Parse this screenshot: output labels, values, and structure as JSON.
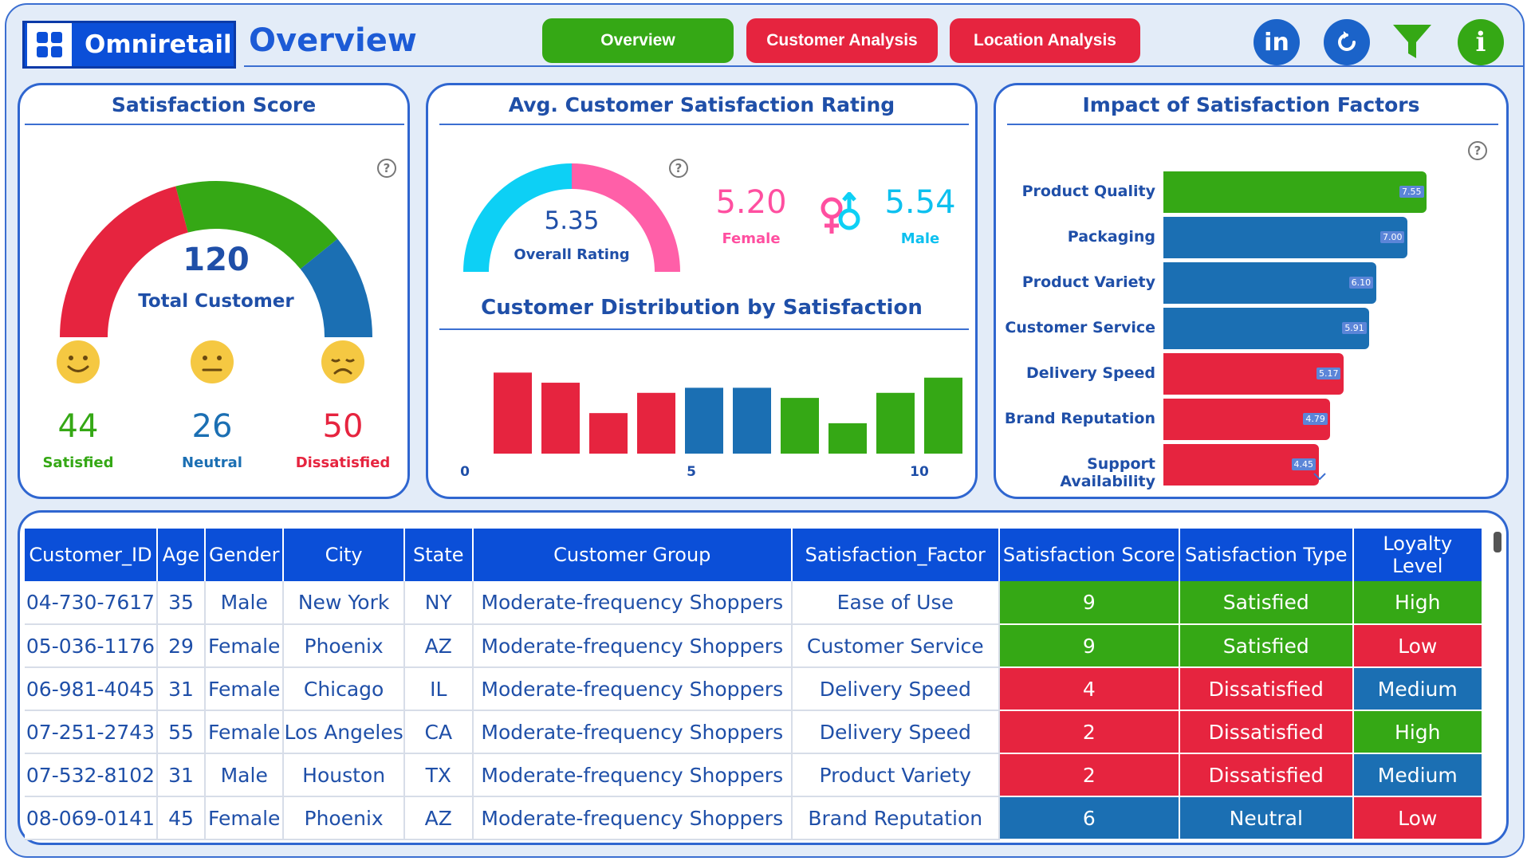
{
  "header": {
    "brand": "Omniretail",
    "title": "Overview",
    "nav": [
      {
        "label": "Overview",
        "color": "#35a815"
      },
      {
        "label": "Customer Analysis",
        "color": "#e6243f"
      },
      {
        "label": "Location Analysis",
        "color": "#e6243f"
      }
    ],
    "icons": [
      "linkedin-icon",
      "refresh-icon",
      "filter-icon",
      "info-icon"
    ],
    "linkedin_text": "in",
    "info_text": "i"
  },
  "satisfaction": {
    "title": "Satisfaction Score",
    "total": "120",
    "total_label": "Total Customer",
    "help": "?",
    "groups": [
      {
        "value": "44",
        "label": "Satisfied",
        "color": "#35a815"
      },
      {
        "value": "26",
        "label": "Neutral",
        "color": "#1b6fb3"
      },
      {
        "value": "50",
        "label": "Dissatisfied",
        "color": "#e6243f"
      }
    ]
  },
  "rating": {
    "title": "Avg. Customer Satisfaction Rating",
    "overall": "5.35",
    "overall_label": "Overall Rating",
    "female_value": "5.20",
    "female_label": "Female",
    "male_value": "5.54",
    "male_label": "Male",
    "help": "?"
  },
  "distribution_chart": {
    "title": "Customer Distribution by Satisfaction",
    "ticks": [
      "0",
      "5",
      "10"
    ]
  },
  "impact_chart": {
    "title": "Impact of Satisfaction Factors",
    "help": "?"
  },
  "chart_data": [
    {
      "type": "bar",
      "title": "Customer Distribution by Satisfaction",
      "categories": [
        "1",
        "2",
        "3",
        "4",
        "5",
        "6",
        "7",
        "8",
        "9",
        "10"
      ],
      "values": [
        16,
        14,
        8,
        12,
        13,
        13,
        11,
        6,
        12,
        15
      ],
      "colors": [
        "#e6243f",
        "#e6243f",
        "#e6243f",
        "#e6243f",
        "#1b6fb3",
        "#1b6fb3",
        "#35a815",
        "#35a815",
        "#35a815",
        "#35a815"
      ],
      "xticks": [
        "0",
        "5",
        "10"
      ],
      "ylim": [
        0,
        17
      ]
    },
    {
      "type": "bar",
      "orientation": "horizontal",
      "title": "Impact of Satisfaction Factors",
      "categories": [
        "Product Quality",
        "Packaging",
        "Product Variety",
        "Customer Service",
        "Delivery Speed",
        "Brand Reputation",
        "Support Availability"
      ],
      "values": [
        7.55,
        7.0,
        6.1,
        5.91,
        5.17,
        4.79,
        4.45
      ],
      "labels": [
        "7.55",
        "7.00",
        "6.10",
        "5.91",
        "5.17",
        "4.79",
        "4.45"
      ],
      "colors": [
        "#35a815",
        "#1b6fb3",
        "#1b6fb3",
        "#1b6fb3",
        "#e6243f",
        "#e6243f",
        "#e6243f"
      ],
      "xlim": [
        0,
        7.55
      ]
    }
  ],
  "table": {
    "columns": [
      "Customer_ID",
      "Age",
      "Gender",
      "City",
      "State",
      "Customer Group",
      "Satisfaction_Factor",
      "Satisfaction Score",
      "Satisfaction Type",
      "Loyalty Level"
    ],
    "rows": [
      [
        "04-730-7617",
        "35",
        "Male",
        "New York",
        "NY",
        "Moderate-frequency Shoppers",
        "Ease of Use",
        "9",
        "Satisfied",
        "High"
      ],
      [
        "05-036-1176",
        "29",
        "Female",
        "Phoenix",
        "AZ",
        "Moderate-frequency Shoppers",
        "Customer Service",
        "9",
        "Satisfied",
        "Low"
      ],
      [
        "06-981-4045",
        "31",
        "Female",
        "Chicago",
        "IL",
        "Moderate-frequency Shoppers",
        "Delivery Speed",
        "4",
        "Dissatisfied",
        "Medium"
      ],
      [
        "07-251-2743",
        "55",
        "Female",
        "Los Angeles",
        "CA",
        "Moderate-frequency Shoppers",
        "Delivery Speed",
        "2",
        "Dissatisfied",
        "High"
      ],
      [
        "07-532-8102",
        "31",
        "Male",
        "Houston",
        "TX",
        "Moderate-frequency Shoppers",
        "Product Variety",
        "2",
        "Dissatisfied",
        "Medium"
      ],
      [
        "08-069-0141",
        "45",
        "Female",
        "Phoenix",
        "AZ",
        "Moderate-frequency Shoppers",
        "Brand Reputation",
        "6",
        "Neutral",
        "Low"
      ]
    ],
    "type_colors": {
      "Satisfied": "#35a815",
      "Dissatisfied": "#e6243f",
      "Neutral": "#1b6fb3"
    },
    "loyalty_colors": {
      "High": "#35a815",
      "Low": "#e6243f",
      "Medium": "#1b6fb3"
    }
  }
}
